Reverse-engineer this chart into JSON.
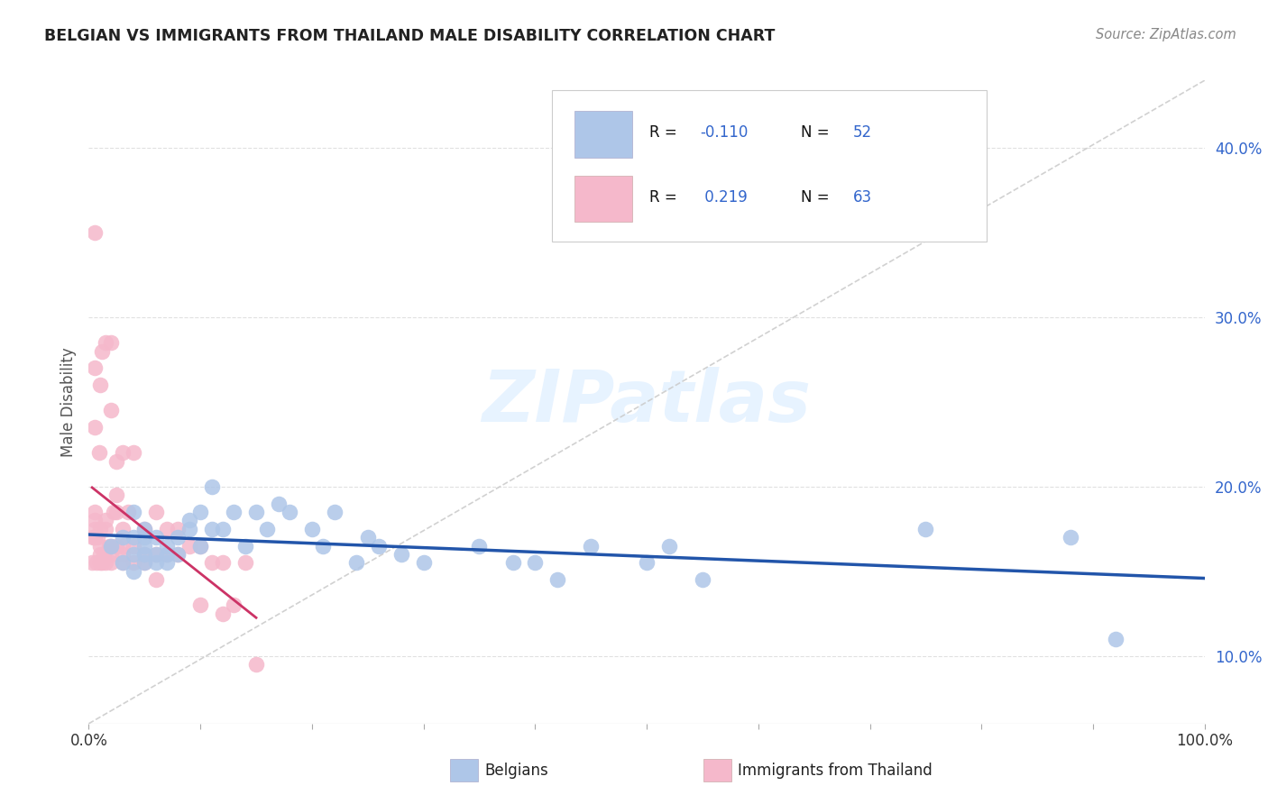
{
  "title": "BELGIAN VS IMMIGRANTS FROM THAILAND MALE DISABILITY CORRELATION CHART",
  "source": "Source: ZipAtlas.com",
  "ylabel": "Male Disability",
  "belgian_color": "#aec6e8",
  "thai_color": "#f5b8cb",
  "belgian_line_color": "#2255aa",
  "thai_line_color": "#cc3366",
  "diag_color": "#cccccc",
  "title_color": "#222222",
  "source_color": "#888888",
  "grid_color": "#dddddd",
  "watermark_color": "#ddeeff",
  "legend_text_color": "#111111",
  "legend_value_color": "#3366cc",
  "background": "#ffffff",
  "xmin": 0.0,
  "xmax": 1.0,
  "ymin": 0.06,
  "ymax": 0.44,
  "ytick_vals": [
    0.1,
    0.2,
    0.3,
    0.4
  ],
  "ytick_labels": [
    "10.0%",
    "20.0%",
    "30.0%",
    "40.0%"
  ],
  "xtick_vals": [
    0.0,
    1.0
  ],
  "xtick_labels": [
    "0.0%",
    "100.0%"
  ],
  "belgian_R": -0.11,
  "belgian_N": 52,
  "thai_R": 0.219,
  "thai_N": 63,
  "belgians_x": [
    0.02,
    0.03,
    0.03,
    0.04,
    0.04,
    0.04,
    0.04,
    0.05,
    0.05,
    0.05,
    0.05,
    0.05,
    0.06,
    0.06,
    0.06,
    0.07,
    0.07,
    0.07,
    0.08,
    0.08,
    0.09,
    0.09,
    0.1,
    0.1,
    0.11,
    0.11,
    0.12,
    0.13,
    0.14,
    0.15,
    0.16,
    0.17,
    0.18,
    0.2,
    0.21,
    0.22,
    0.24,
    0.25,
    0.26,
    0.28,
    0.3,
    0.35,
    0.38,
    0.4,
    0.42,
    0.45,
    0.5,
    0.52,
    0.55,
    0.75,
    0.88,
    0.92
  ],
  "belgians_y": [
    0.165,
    0.155,
    0.17,
    0.15,
    0.16,
    0.17,
    0.185,
    0.155,
    0.16,
    0.165,
    0.17,
    0.175,
    0.155,
    0.16,
    0.17,
    0.155,
    0.16,
    0.165,
    0.16,
    0.17,
    0.175,
    0.18,
    0.165,
    0.185,
    0.175,
    0.2,
    0.175,
    0.185,
    0.165,
    0.185,
    0.175,
    0.19,
    0.185,
    0.175,
    0.165,
    0.185,
    0.155,
    0.17,
    0.165,
    0.16,
    0.155,
    0.165,
    0.155,
    0.155,
    0.145,
    0.165,
    0.155,
    0.165,
    0.145,
    0.175,
    0.17,
    0.11
  ],
  "thai_x": [
    0.003,
    0.004,
    0.005,
    0.005,
    0.005,
    0.005,
    0.005,
    0.005,
    0.005,
    0.007,
    0.008,
    0.009,
    0.01,
    0.01,
    0.01,
    0.01,
    0.01,
    0.012,
    0.012,
    0.013,
    0.015,
    0.015,
    0.015,
    0.015,
    0.018,
    0.02,
    0.02,
    0.02,
    0.02,
    0.02,
    0.022,
    0.025,
    0.025,
    0.025,
    0.025,
    0.03,
    0.03,
    0.03,
    0.03,
    0.03,
    0.035,
    0.04,
    0.04,
    0.04,
    0.05,
    0.05,
    0.05,
    0.06,
    0.06,
    0.06,
    0.07,
    0.07,
    0.08,
    0.08,
    0.09,
    0.1,
    0.1,
    0.11,
    0.12,
    0.12,
    0.13,
    0.14,
    0.15
  ],
  "thai_y": [
    0.155,
    0.17,
    0.17,
    0.175,
    0.18,
    0.185,
    0.235,
    0.27,
    0.35,
    0.155,
    0.17,
    0.22,
    0.155,
    0.16,
    0.165,
    0.175,
    0.26,
    0.155,
    0.28,
    0.16,
    0.155,
    0.175,
    0.18,
    0.285,
    0.165,
    0.155,
    0.16,
    0.165,
    0.245,
    0.285,
    0.185,
    0.165,
    0.185,
    0.195,
    0.215,
    0.155,
    0.16,
    0.165,
    0.175,
    0.22,
    0.185,
    0.155,
    0.165,
    0.22,
    0.155,
    0.16,
    0.175,
    0.145,
    0.16,
    0.185,
    0.16,
    0.175,
    0.16,
    0.175,
    0.165,
    0.13,
    0.165,
    0.155,
    0.125,
    0.155,
    0.13,
    0.155,
    0.095
  ]
}
